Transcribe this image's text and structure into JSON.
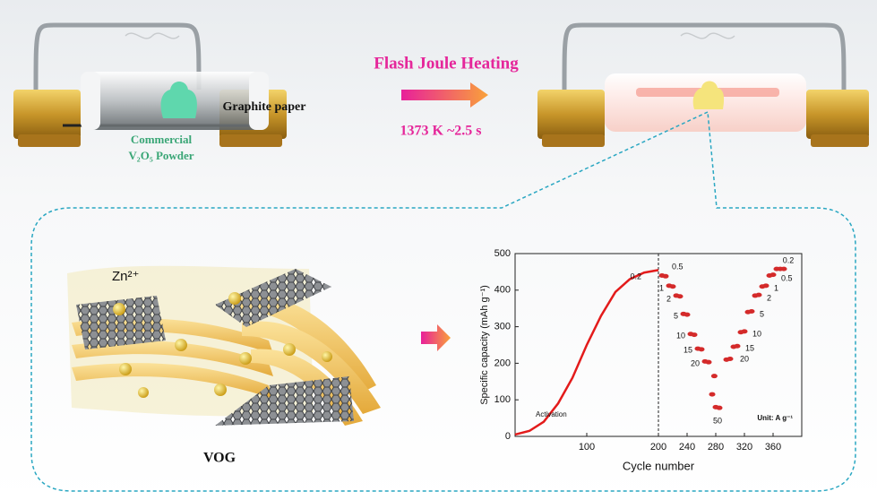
{
  "process": {
    "before": {
      "substrate_label": "Graphite paper",
      "powder_label": [
        "Commercial",
        "V₂O₅ Powder"
      ]
    },
    "step": {
      "title": "Flash Joule Heating",
      "condition": "1373 K  ~2.5 s"
    }
  },
  "product": {
    "ion_label": "Zn²⁺",
    "name": "VOG"
  },
  "chart_data": {
    "type": "scatter",
    "x_label": "Cycle number",
    "y_label": "Specific capacity (mAh g⁻¹)",
    "xlim": [
      0,
      400
    ],
    "ylim": [
      0,
      500
    ],
    "xticks": [
      100,
      200,
      240,
      280,
      320,
      360
    ],
    "yticks": [
      0,
      100,
      200,
      300,
      400,
      500
    ],
    "vline": 200,
    "series": [
      {
        "color": "#e31b1b",
        "mode": "line",
        "x": [
          0,
          20,
          40,
          60,
          80,
          100,
          120,
          140,
          160,
          180,
          200
        ],
        "values": [
          5,
          15,
          40,
          90,
          160,
          250,
          330,
          395,
          430,
          448,
          455
        ]
      },
      {
        "color": "#d42a2a",
        "mode": "markers",
        "x": [
          205,
          210,
          215,
          220,
          225,
          230,
          235,
          240,
          245,
          250,
          255,
          260,
          265,
          270,
          275,
          278,
          280,
          285,
          295,
          300,
          305,
          310,
          315,
          320,
          325,
          330,
          335,
          340,
          345,
          350,
          355,
          360,
          365,
          370,
          375
        ],
        "values": [
          440,
          438,
          412,
          410,
          385,
          383,
          335,
          333,
          280,
          278,
          240,
          238,
          205,
          203,
          115,
          165,
          80,
          78,
          210,
          212,
          245,
          247,
          285,
          287,
          340,
          342,
          385,
          387,
          410,
          412,
          440,
          442,
          458,
          458,
          458
        ]
      }
    ],
    "annotations": [
      "0.2",
      "0.5",
      "1",
      "2",
      "5",
      "10",
      "15",
      "20",
      "50",
      "20",
      "15",
      "10",
      "5",
      "2",
      "1",
      "0.5",
      "0.2",
      "Activation",
      "Unit: A g⁻¹"
    ]
  }
}
